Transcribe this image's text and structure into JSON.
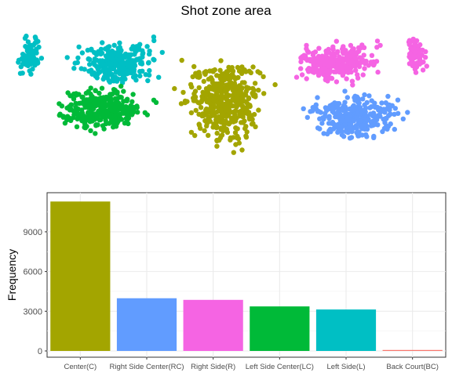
{
  "chart_data": [
    {
      "type": "scatter",
      "title": "Shot zone area",
      "axes_visible": false,
      "series": [
        {
          "name": "Center(C)",
          "color": "#A3A500"
        },
        {
          "name": "Right Side Center(RC)",
          "color": "#619CFF"
        },
        {
          "name": "Right Side(R)",
          "color": "#F564E3"
        },
        {
          "name": "Left Side Center(LC)",
          "color": "#00BA38"
        },
        {
          "name": "Left Side(L)",
          "color": "#00BFC4"
        },
        {
          "name": "Back Court(BC)",
          "color": "#F8766D"
        }
      ],
      "legend": "none"
    },
    {
      "type": "bar",
      "categories": [
        "Center(C)",
        "Right Side Center(RC)",
        "Right Side(R)",
        "Left Side Center(LC)",
        "Left Side(L)",
        "Back Court(BC)"
      ],
      "values": [
        11289,
        3981,
        3859,
        3364,
        3132,
        72
      ],
      "colors": [
        "#A3A500",
        "#619CFF",
        "#F564E3",
        "#00BA38",
        "#00BFC4",
        "#F8766D"
      ],
      "xlabel": "",
      "ylabel": "Frequency",
      "yticks": [
        "0",
        "3000",
        "6000",
        "9000"
      ],
      "ylim": [
        0,
        11900
      ],
      "grid": true
    }
  ]
}
